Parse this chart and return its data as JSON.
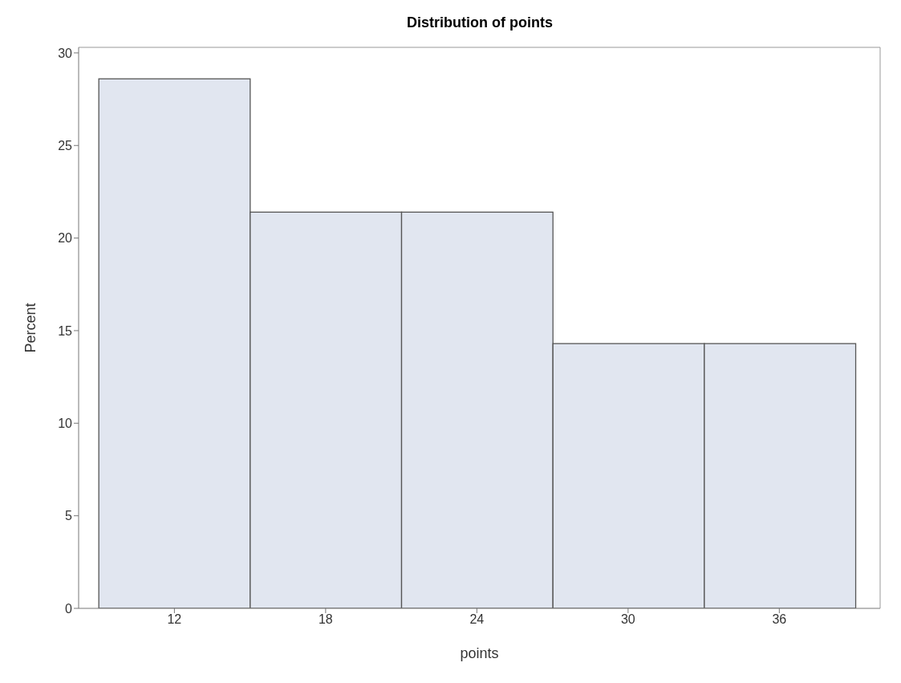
{
  "chart_data": {
    "type": "histogram",
    "title": "Distribution of points",
    "xlabel": "points",
    "ylabel": "Percent",
    "bins": [
      9,
      15,
      21,
      27,
      33,
      39
    ],
    "values": [
      28.6,
      21.4,
      21.4,
      14.3,
      14.3
    ],
    "color": "#e1e6f0",
    "xlim": [
      8.2,
      40
    ],
    "xticks": [
      12,
      18,
      24,
      30,
      36
    ],
    "ylim": [
      0,
      30.3
    ],
    "yticks": [
      0,
      5,
      10,
      15,
      20,
      25,
      30
    ]
  }
}
